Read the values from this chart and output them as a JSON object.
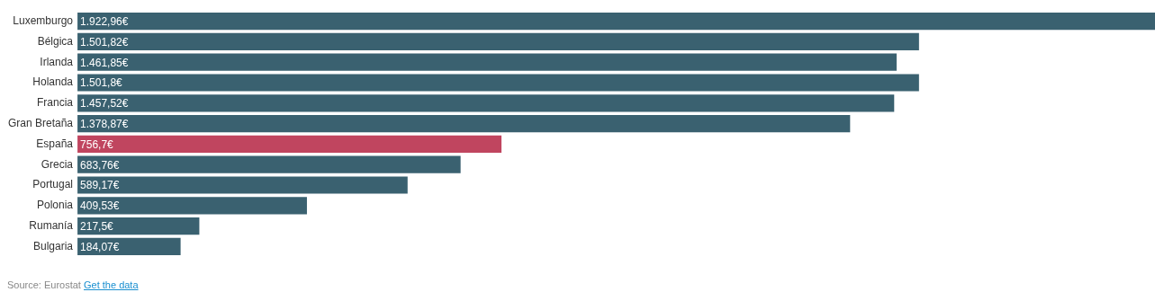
{
  "chart_data": {
    "type": "bar",
    "orientation": "horizontal",
    "categories": [
      "Luxemburgo",
      "Bélgica",
      "Irlanda",
      "Holanda",
      "Francia",
      "Gran Bretaña",
      "España",
      "Grecia",
      "Portugal",
      "Polonia",
      "Rumanía",
      "Bulgaria"
    ],
    "values": [
      1922.96,
      1501.82,
      1461.85,
      1501.8,
      1457.52,
      1378.87,
      756.7,
      683.76,
      589.17,
      409.53,
      217.5,
      184.07
    ],
    "value_labels": [
      "1.922,96€",
      "1.501,82€",
      "1.461,85€",
      "1.501,8€",
      "1.457,52€",
      "1.378,87€",
      "756,7€",
      "683,76€",
      "589,17€",
      "409,53€",
      "217,5€",
      "184,07€"
    ],
    "colors": [
      "#3a6170",
      "#3a6170",
      "#3a6170",
      "#3a6170",
      "#3a6170",
      "#3a6170",
      "#c0455f",
      "#3a6170",
      "#3a6170",
      "#3a6170",
      "#3a6170",
      "#3a6170"
    ],
    "legend": false,
    "annotations": [
      "Source: Eurostat",
      "Get the data"
    ]
  }
}
